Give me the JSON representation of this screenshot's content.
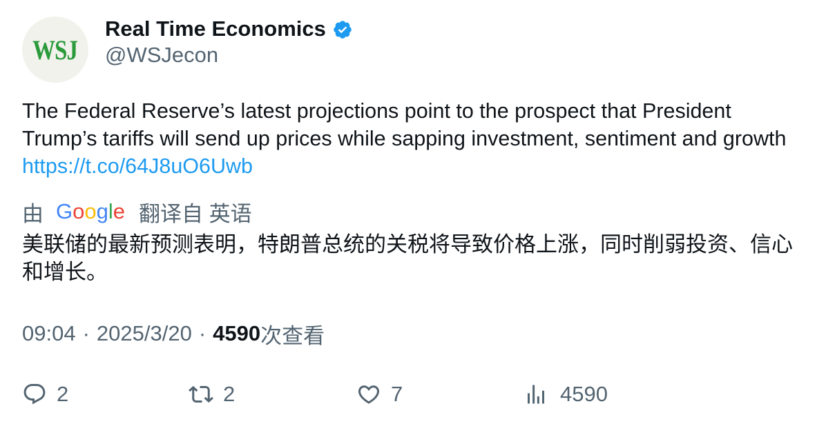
{
  "author": {
    "avatar_text": "WSJ",
    "display_name": "Real Time Economics",
    "handle": "@WSJecon",
    "verified_icon": "verified-badge-icon",
    "colors": {
      "verified": "#1d9bf0",
      "avatar_logo": "#2a9a3a"
    }
  },
  "tweet": {
    "text": "The Federal Reserve’s latest projections point to the prospect that President Trump’s tariffs will send up prices while sapping investment, sentiment and growth",
    "link": "https://t.co/64J8uO6Uwb"
  },
  "translation": {
    "prefix": "由",
    "provider": "Google",
    "suffix": "翻译自 英语",
    "text": "美联储的最新预测表明，特朗普总统的关税将导致价格上涨，同时削弱投资、信心和增长。"
  },
  "meta": {
    "time": "09:04",
    "separator": "·",
    "date": "2025/3/20",
    "views_count": "4590",
    "views_label": "次查看"
  },
  "actions": {
    "reply": {
      "icon": "reply-icon",
      "count": "2"
    },
    "retweet": {
      "icon": "retweet-icon",
      "count": "2"
    },
    "like": {
      "icon": "heart-icon",
      "count": "7"
    },
    "views": {
      "icon": "analytics-icon",
      "count": "4590"
    }
  }
}
